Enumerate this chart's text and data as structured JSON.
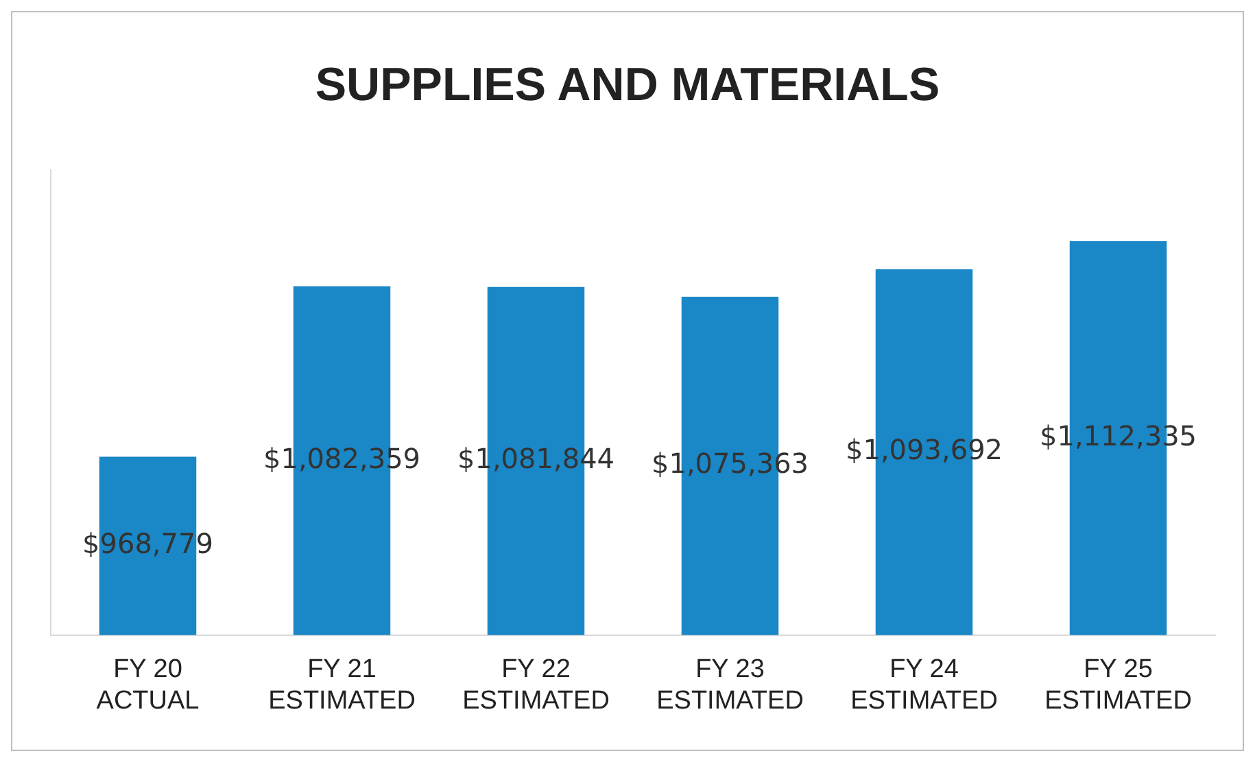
{
  "chart_data": {
    "type": "bar",
    "title": "SUPPLIES AND MATERIALS",
    "categories": [
      "FY 20\nACTUAL",
      "FY 21\nESTIMATED",
      "FY 22\nESTIMATED",
      "FY 23\nESTIMATED",
      "FY 24\nESTIMATED",
      "FY 25\nESTIMATED"
    ],
    "values": [
      968779,
      1082359,
      1081844,
      1075363,
      1093692,
      1112335
    ],
    "value_labels": [
      "$968,779",
      "$1,082,359",
      "$1,081,844",
      "$1,075,363",
      "$1,093,692",
      "$1,112,335"
    ],
    "color": "#1a87c6",
    "ylim": [
      850000,
      1160000
    ],
    "grid": false,
    "legend": false
  }
}
